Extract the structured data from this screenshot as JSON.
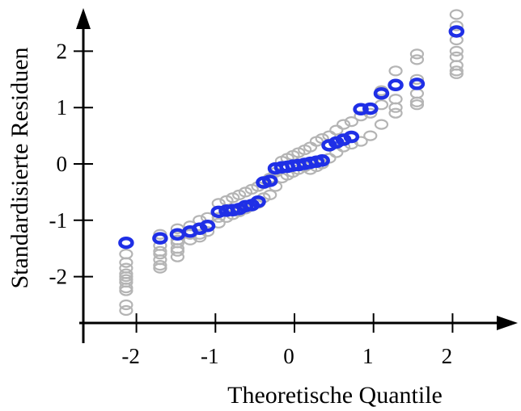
{
  "chart_data": {
    "type": "scatter",
    "title": "",
    "xlabel": "Theoretische Quantile",
    "ylabel": "Standardisierte Residuen",
    "xlim": [
      -2.5,
      2.25
    ],
    "ylim": [
      -2.75,
      2.75
    ],
    "x_ticks": [
      -2,
      -1,
      0,
      1,
      2
    ],
    "y_ticks": [
      -2,
      -1,
      0,
      1,
      2
    ],
    "x_tick_labels": [
      "-2",
      "-1",
      "0",
      "1",
      "2"
    ],
    "y_tick_labels": [
      "-2",
      "-1",
      "0",
      "1",
      "2"
    ],
    "grid": false,
    "colors": {
      "observed": "#1f2fe6",
      "simulated": "#b4b4b4",
      "axis": "#000000"
    },
    "series": [
      {
        "role": "observed",
        "x": [
          -2.13,
          -1.7,
          -1.48,
          -1.32,
          -1.2,
          -1.1,
          -0.96,
          -0.86,
          -0.78,
          -0.7,
          -0.62,
          -0.54,
          -0.46,
          -0.39,
          -0.31,
          -0.24,
          -0.16,
          -0.09,
          -0.02,
          0.05,
          0.13,
          0.2,
          0.28,
          0.35,
          0.44,
          0.53,
          0.62,
          0.72,
          0.84,
          0.96,
          1.1,
          1.28,
          1.55,
          2.05
        ],
        "y": [
          -1.4,
          -1.32,
          -1.25,
          -1.2,
          -1.15,
          -1.1,
          -0.85,
          -0.83,
          -0.82,
          -0.8,
          -0.75,
          -0.73,
          -0.67,
          -0.33,
          -0.3,
          -0.08,
          -0.06,
          -0.05,
          -0.03,
          -0.02,
          0.0,
          0.02,
          0.04,
          0.06,
          0.33,
          0.38,
          0.43,
          0.48,
          0.97,
          0.98,
          1.25,
          1.4,
          1.42,
          2.35
        ]
      },
      {
        "role": "simulated",
        "x": [
          -2.13,
          -2.13,
          -2.13,
          -2.13,
          -2.13,
          -2.13,
          -2.13,
          -2.13,
          -2.13,
          -2.13,
          -2.13,
          -1.7,
          -1.7,
          -1.7,
          -1.7,
          -1.7,
          -1.7,
          -1.7,
          -1.48,
          -1.48,
          -1.48,
          -1.48,
          -1.48,
          -1.48,
          -1.32,
          -1.32,
          -1.32,
          -1.2,
          -1.2,
          -1.2,
          -1.1,
          -1.1,
          -0.96,
          -0.96,
          -0.96,
          -0.86,
          -0.86,
          -0.78,
          -0.78,
          -0.7,
          -0.7,
          -0.62,
          -0.62,
          -0.54,
          -0.54,
          -0.46,
          -0.46,
          -0.39,
          -0.39,
          -0.31,
          -0.31,
          -0.24,
          -0.24,
          -0.16,
          -0.16,
          -0.09,
          -0.09,
          -0.02,
          -0.02,
          0.05,
          0.05,
          0.13,
          0.13,
          0.2,
          0.2,
          0.28,
          0.28,
          0.35,
          0.35,
          0.44,
          0.44,
          0.53,
          0.53,
          0.62,
          0.62,
          0.72,
          0.72,
          0.84,
          0.84,
          0.96,
          0.96,
          1.1,
          1.1,
          1.1,
          1.28,
          1.28,
          1.28,
          1.28,
          1.55,
          1.55,
          1.55,
          1.55,
          1.55,
          1.55,
          2.05,
          2.05,
          2.05,
          2.05,
          2.05,
          2.05,
          2.05,
          2.05
        ],
        "y": [
          -1.6,
          -1.75,
          -1.85,
          -1.95,
          -2.0,
          -2.05,
          -2.1,
          -2.2,
          -2.25,
          -2.5,
          -2.6,
          -1.25,
          -1.45,
          -1.55,
          -1.6,
          -1.7,
          -1.8,
          -1.85,
          -1.15,
          -1.35,
          -1.4,
          -1.5,
          -1.55,
          -1.65,
          -1.1,
          -1.25,
          -1.35,
          -1.0,
          -1.3,
          -1.25,
          -0.95,
          -1.2,
          -0.7,
          -0.95,
          -1.05,
          -0.65,
          -0.95,
          -0.6,
          -0.9,
          -0.55,
          -0.85,
          -0.5,
          -0.8,
          -0.45,
          -0.75,
          -0.4,
          -0.7,
          -0.35,
          -0.6,
          -0.25,
          -0.55,
          -0.15,
          -0.4,
          0.05,
          -0.25,
          0.1,
          -0.2,
          0.15,
          -0.15,
          0.2,
          -0.1,
          0.25,
          -0.05,
          0.3,
          -0.1,
          0.4,
          -0.05,
          0.45,
          0.0,
          0.5,
          0.1,
          0.6,
          0.2,
          0.7,
          0.3,
          0.75,
          0.35,
          0.85,
          0.4,
          0.9,
          0.5,
          1.05,
          0.7,
          1.3,
          1.15,
          1.0,
          0.9,
          1.65,
          1.5,
          1.25,
          1.1,
          1.85,
          1.95,
          1.05,
          1.6,
          1.65,
          1.75,
          1.9,
          2.0,
          2.2,
          2.45,
          2.65
        ]
      }
    ]
  }
}
